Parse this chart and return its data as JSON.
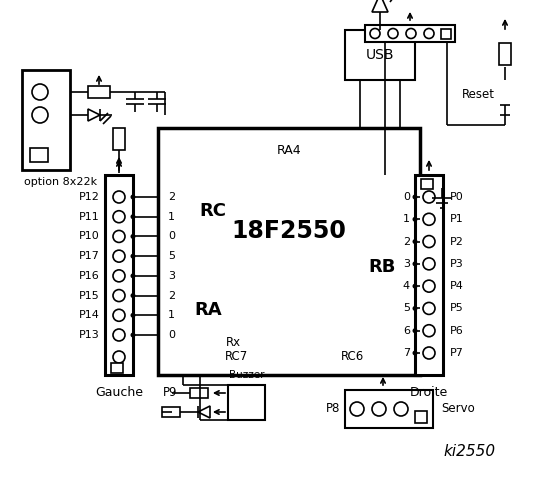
{
  "title": "ki2550",
  "bg_color": "#ffffff",
  "chip_label": "18F2550",
  "chip_sublabel": "RA4",
  "left_connector_labels": [
    "P12",
    "P11",
    "P10",
    "P17",
    "P16",
    "P15",
    "P14",
    "P13"
  ],
  "right_connector_labels": [
    "P0",
    "P1",
    "P2",
    "P3",
    "P4",
    "P5",
    "P6",
    "P7"
  ],
  "rc_pins": [
    "2",
    "1",
    "0",
    "5",
    "3",
    "2",
    "1",
    "0"
  ],
  "rb_pins": [
    "0",
    "1",
    "2",
    "3",
    "4",
    "5",
    "6",
    "7"
  ],
  "left_label": "Gauche",
  "right_label": "Droite",
  "rc_label": "RC",
  "ra_label": "RA",
  "rb_label": "RB",
  "rx_label": "Rx",
  "rc7_label": "RC7",
  "rc6_label": "RC6",
  "usb_label": "USB",
  "reset_label": "Reset",
  "buzzer_label": "Buzzer",
  "servo_label": "Servo",
  "p9_label": "P9",
  "p8_label": "P8",
  "option_label": "option 8x22k",
  "line_color": "#000000",
  "text_color": "#000000"
}
